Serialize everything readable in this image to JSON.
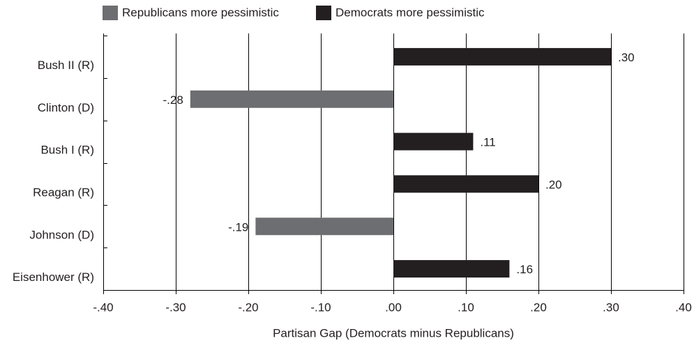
{
  "chart_data": {
    "type": "bar",
    "orientation": "horizontal",
    "categories": [
      "Bush II (R)",
      "Clinton (D)",
      "Bush I (R)",
      "Reagan (R)",
      "Johnson (D)",
      "Eisenhower (R)"
    ],
    "series": [
      {
        "name": "Republicans more pessimistic",
        "color": "#6d6e71",
        "values": [
          null,
          -0.28,
          null,
          null,
          -0.19,
          null
        ],
        "labels": [
          null,
          "-.28",
          null,
          null,
          "-.19",
          null
        ]
      },
      {
        "name": "Democrats more pessimistic",
        "color": "#231f20",
        "values": [
          0.3,
          null,
          0.11,
          0.2,
          null,
          0.16
        ],
        "labels": [
          ".30",
          null,
          ".11",
          ".20",
          null,
          ".16"
        ]
      }
    ],
    "xlabel": "Partisan Gap (Democrats minus Republicans)",
    "xlim": [
      -0.4,
      0.4
    ],
    "xticks": [
      -0.4,
      -0.3,
      -0.2,
      -0.1,
      0,
      0.1,
      0.2,
      0.3,
      0.4
    ],
    "xtick_labels": [
      "-.40",
      "-.30",
      "-.20",
      "-.10",
      ".00",
      ".10",
      ".20",
      ".30",
      ".40"
    ],
    "grid": "vertical",
    "legend_position": "top"
  }
}
